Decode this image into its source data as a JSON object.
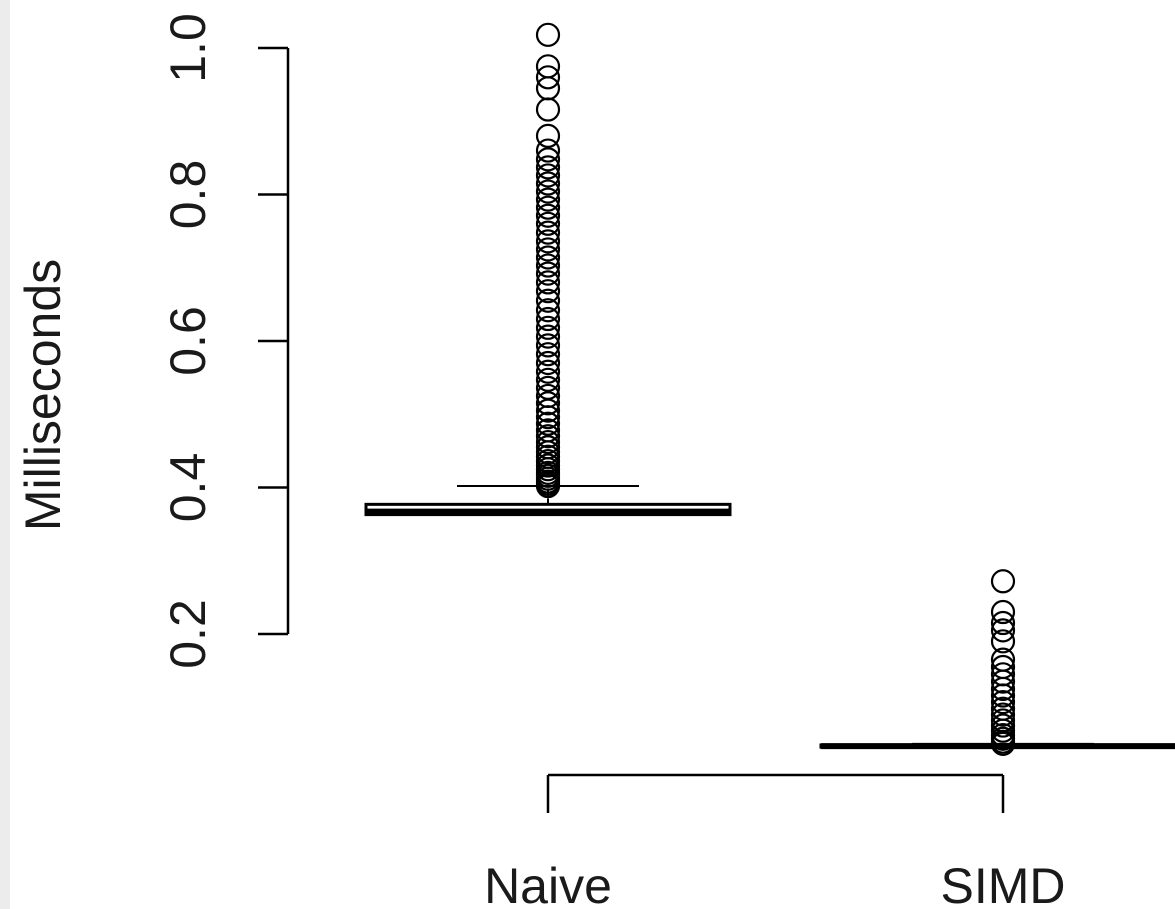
{
  "chart_data": {
    "type": "boxplot",
    "title": "",
    "xlabel": "",
    "ylabel": "Milliseconds",
    "ylim": [
      0.2,
      1.0
    ],
    "yticks": [
      "0.2",
      "0.4",
      "0.6",
      "0.8",
      "1.0"
    ],
    "categories": [
      "Naive",
      "SIMD"
    ],
    "grid": false,
    "legend": "none",
    "series": [
      {
        "category": "Naive",
        "whisker_low": 0.363,
        "q1": 0.363,
        "median": 0.367,
        "q3": 0.377,
        "whisker_high": 0.402,
        "outliers": [
          0.402,
          0.405,
          0.408,
          0.412,
          0.416,
          0.42,
          0.425,
          0.43,
          0.436,
          0.442,
          0.448,
          0.455,
          0.462,
          0.47,
          0.478,
          0.487,
          0.496,
          0.505,
          0.515,
          0.525,
          0.536,
          0.547,
          0.558,
          0.57,
          0.582,
          0.594,
          0.606,
          0.618,
          0.63,
          0.642,
          0.655,
          0.668,
          0.68,
          0.692,
          0.703,
          0.714,
          0.725,
          0.736,
          0.748,
          0.76,
          0.771,
          0.782,
          0.793,
          0.804,
          0.815,
          0.826,
          0.837,
          0.848,
          0.86,
          0.88,
          0.916,
          0.945,
          0.96,
          0.975,
          1.018
        ]
      },
      {
        "category": "SIMD",
        "whisker_low": 0.0455,
        "q1": 0.0455,
        "median": 0.047,
        "q3": 0.0485,
        "whisker_high": 0.05,
        "outliers": [
          0.05,
          0.053,
          0.057,
          0.062,
          0.068,
          0.075,
          0.082,
          0.09,
          0.098,
          0.107,
          0.116,
          0.125,
          0.135,
          0.145,
          0.155,
          0.165,
          0.19,
          0.205,
          0.215,
          0.23,
          0.272
        ]
      }
    ]
  }
}
